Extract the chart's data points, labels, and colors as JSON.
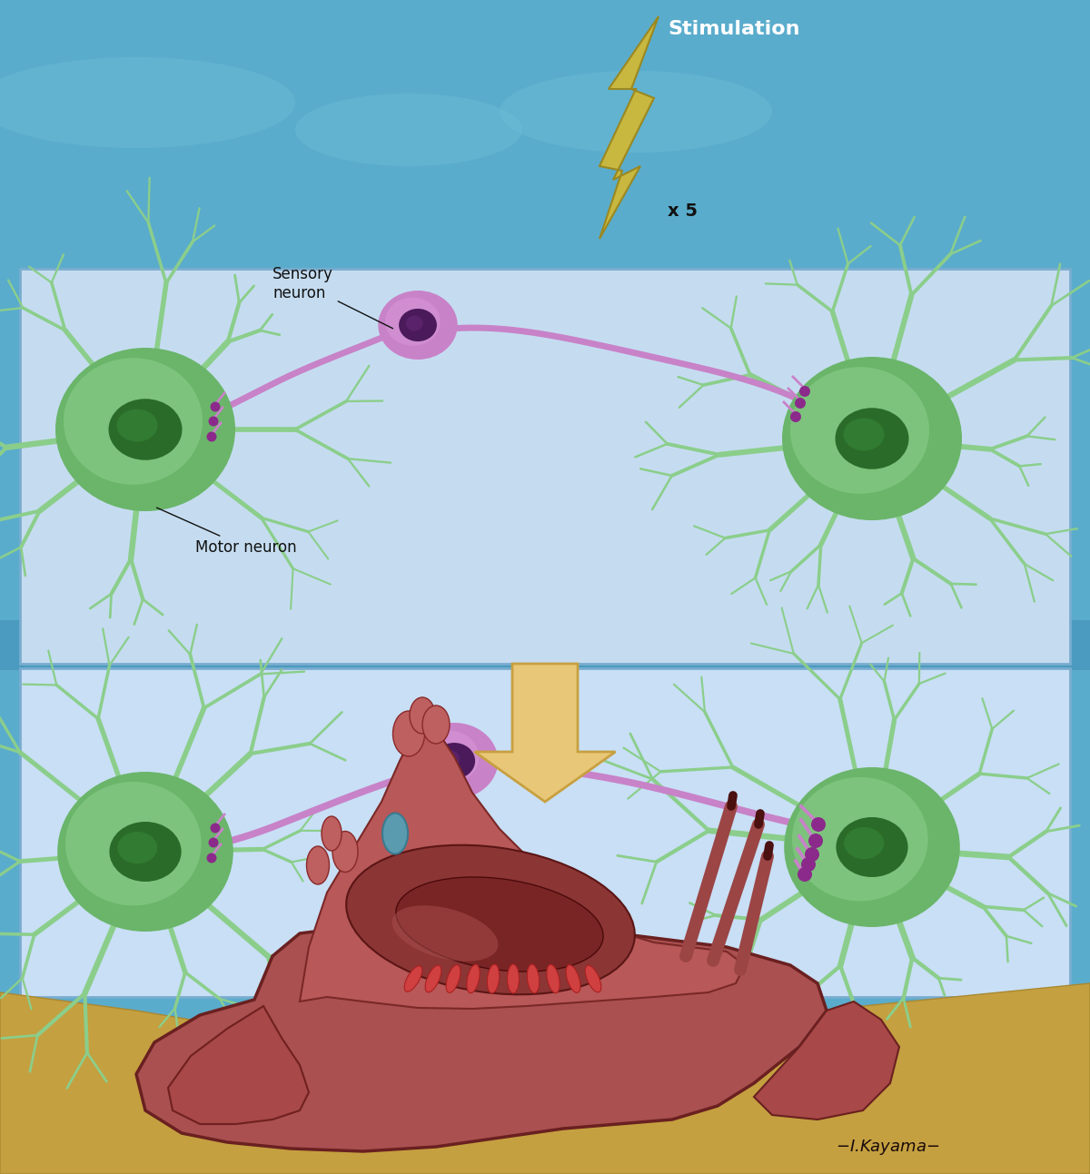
{
  "bg_ocean_color": "#5AACCC",
  "bg_panel1_color": "#C5DCF0",
  "bg_panel2_color": "#C8DFF5",
  "bg_sand_color": "#C8A84A",
  "neuron_green_fill": "#8BCE8B",
  "neuron_green_mid": "#6AB56A",
  "neuron_nucleus_color": "#2A6B2A",
  "neuron_pink_fill": "#C882C8",
  "neuron_pink_dark": "#9B4A9B",
  "neuron_pink_nucleus": "#4A1A5B",
  "arrow_fill": "#E8C878",
  "arrow_edge": "#C8A040",
  "bolt_fill": "#C8B840",
  "bolt_edge": "#9A8820",
  "slug_base": "#AA5050",
  "slug_mid": "#C06060",
  "slug_dark": "#7A2828",
  "slug_highlight": "#BB7070",
  "synapse_color": "#8B2A8B",
  "text_white": "#FFFFFF",
  "text_black": "#111111",
  "title": "Stimulation",
  "x5_label": "x 5",
  "label_sensory": "Sensory\nneuron",
  "label_motor": "Motor neuron"
}
